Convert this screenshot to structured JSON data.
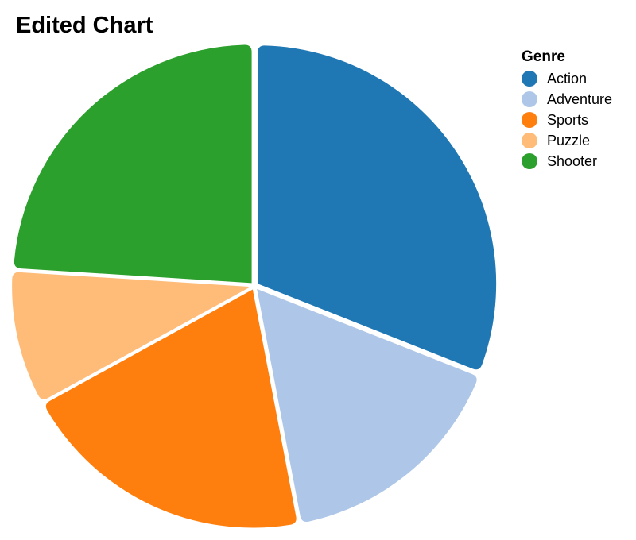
{
  "chart_data": {
    "type": "pie",
    "title": "Edited Chart",
    "legend_title": "Genre",
    "legend_position": "top-right",
    "categories": [
      "Action",
      "Adventure",
      "Sports",
      "Puzzle",
      "Shooter"
    ],
    "values": [
      31,
      16,
      20,
      9,
      24
    ],
    "colors": [
      "#1f77b4",
      "#aec7e8",
      "#ff7f0e",
      "#ffbb78",
      "#2ca02c"
    ]
  }
}
